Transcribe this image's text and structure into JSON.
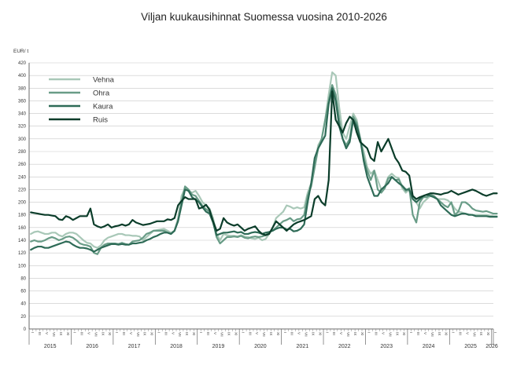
{
  "chart_data": {
    "type": "line",
    "title": "Viljan kuukausihinnat Suomessa vuosina 2010-2026",
    "ylabel": "EUR/ t",
    "xlabel": "",
    "ylim": [
      0,
      420
    ],
    "yticks": [
      0,
      20,
      40,
      60,
      80,
      100,
      120,
      140,
      160,
      180,
      200,
      220,
      240,
      260,
      280,
      300,
      320,
      340,
      360,
      380,
      400,
      420
    ],
    "year_labels": [
      "2015",
      "2016",
      "2017",
      "2018",
      "2019",
      "2020",
      "2021",
      "2022",
      "2023",
      "2024",
      "2025",
      "2026"
    ],
    "month_labels": [
      "I",
      "III",
      "V",
      "VII",
      "IX",
      "XI"
    ],
    "grid": true,
    "legend_position": "top-left",
    "start": "2015-01",
    "series": [
      {
        "name": "Vehna",
        "color": "#a9c8b8",
        "values": [
          150,
          153,
          154,
          152,
          150,
          150,
          152,
          152,
          148,
          146,
          150,
          152,
          152,
          150,
          145,
          140,
          136,
          135,
          130,
          128,
          132,
          140,
          144,
          146,
          148,
          150,
          150,
          148,
          148,
          147,
          147,
          146,
          140,
          145,
          150,
          155,
          156,
          157,
          158,
          155,
          152,
          155,
          175,
          210,
          222,
          218,
          215,
          218,
          210,
          200,
          195,
          190,
          175,
          150,
          140,
          150,
          148,
          147,
          147,
          146,
          148,
          146,
          145,
          143,
          142,
          144,
          140,
          142,
          150,
          160,
          175,
          180,
          185,
          195,
          193,
          190,
          192,
          190,
          192,
          215,
          230,
          260,
          290,
          300,
          330,
          370,
          405,
          400,
          350,
          310,
          300,
          320,
          340,
          330,
          300,
          280,
          255,
          245,
          250,
          235,
          220,
          225,
          240,
          245,
          240,
          238,
          222,
          215,
          220,
          210,
          200,
          190,
          200,
          205,
          210,
          208,
          205,
          205,
          205,
          203,
          198,
          190,
          185,
          184,
          182,
          181,
          180,
          180,
          180,
          180,
          180,
          179,
          178,
          178
        ]
      },
      {
        "name": "Ohra",
        "color": "#699c87",
        "values": [
          138,
          140,
          138,
          138,
          140,
          143,
          145,
          143,
          140,
          142,
          145,
          146,
          144,
          140,
          135,
          133,
          132,
          130,
          120,
          118,
          128,
          133,
          135,
          135,
          135,
          134,
          136,
          134,
          133,
          138,
          139,
          140,
          144,
          150,
          152,
          155,
          155,
          155,
          155,
          152,
          150,
          155,
          170,
          200,
          225,
          220,
          212,
          210,
          202,
          194,
          189,
          185,
          170,
          145,
          135,
          140,
          145,
          145,
          146,
          145,
          147,
          144,
          143,
          145,
          146,
          145,
          146,
          148,
          153,
          155,
          160,
          165,
          170,
          172,
          175,
          170,
          173,
          174,
          180,
          210,
          225,
          255,
          285,
          300,
          330,
          360,
          385,
          370,
          330,
          300,
          290,
          300,
          335,
          325,
          300,
          270,
          250,
          235,
          250,
          220,
          215,
          222,
          238,
          240,
          235,
          236,
          225,
          218,
          222,
          180,
          168,
          200,
          208,
          208,
          212,
          210,
          205,
          200,
          195,
          192,
          200,
          180,
          185,
          200,
          200,
          196,
          190,
          187,
          186,
          185,
          186,
          184,
          182,
          182
        ]
      },
      {
        "name": "Kaura",
        "color": "#2e6b57",
        "values": [
          125,
          128,
          130,
          130,
          128,
          128,
          130,
          132,
          134,
          136,
          138,
          137,
          133,
          130,
          128,
          128,
          127,
          125,
          122,
          125,
          128,
          130,
          132,
          134,
          134,
          133,
          134,
          133,
          133,
          135,
          135,
          136,
          137,
          140,
          142,
          145,
          147,
          150,
          152,
          152,
          150,
          155,
          170,
          195,
          220,
          218,
          208,
          204,
          200,
          192,
          185,
          182,
          168,
          148,
          150,
          152,
          152,
          153,
          154,
          152,
          153,
          150,
          150,
          152,
          153,
          152,
          150,
          152,
          153,
          155,
          158,
          160,
          160,
          157,
          158,
          154,
          155,
          158,
          165,
          200,
          230,
          270,
          285,
          295,
          305,
          355,
          380,
          360,
          320,
          300,
          285,
          295,
          330,
          320,
          300,
          265,
          240,
          225,
          210,
          210,
          220,
          225,
          230,
          240,
          235,
          230,
          226,
          220,
          220,
          205,
          200,
          205,
          210,
          212,
          210,
          208,
          205,
          195,
          190,
          185,
          180,
          178,
          180,
          182,
          182,
          180,
          180,
          178,
          178,
          178,
          178,
          177,
          177,
          177
        ]
      },
      {
        "name": "Ruis",
        "color": "#0b3d2a",
        "values": [
          184,
          183,
          182,
          181,
          180,
          180,
          179,
          178,
          173,
          172,
          178,
          176,
          172,
          175,
          178,
          178,
          178,
          190,
          165,
          162,
          160,
          162,
          165,
          160,
          162,
          163,
          165,
          163,
          165,
          172,
          168,
          166,
          164,
          165,
          166,
          168,
          170,
          170,
          170,
          173,
          172,
          175,
          195,
          202,
          208,
          205,
          205,
          205,
          190,
          192,
          196,
          188,
          170,
          155,
          158,
          175,
          168,
          165,
          163,
          165,
          160,
          155,
          158,
          160,
          162,
          155,
          150,
          148,
          150,
          160,
          170,
          165,
          160,
          155,
          160,
          165,
          168,
          170,
          172,
          175,
          178,
          205,
          210,
          200,
          195,
          235,
          375,
          330,
          320,
          310,
          325,
          335,
          330,
          310,
          295,
          290,
          285,
          270,
          265,
          295,
          280,
          290,
          300,
          285,
          270,
          262,
          250,
          248,
          242,
          210,
          205,
          208,
          210,
          212,
          214,
          214,
          213,
          212,
          214,
          215,
          218,
          215,
          212,
          214,
          216,
          218,
          220,
          218,
          215,
          212,
          210,
          212,
          214,
          214
        ]
      }
    ]
  }
}
